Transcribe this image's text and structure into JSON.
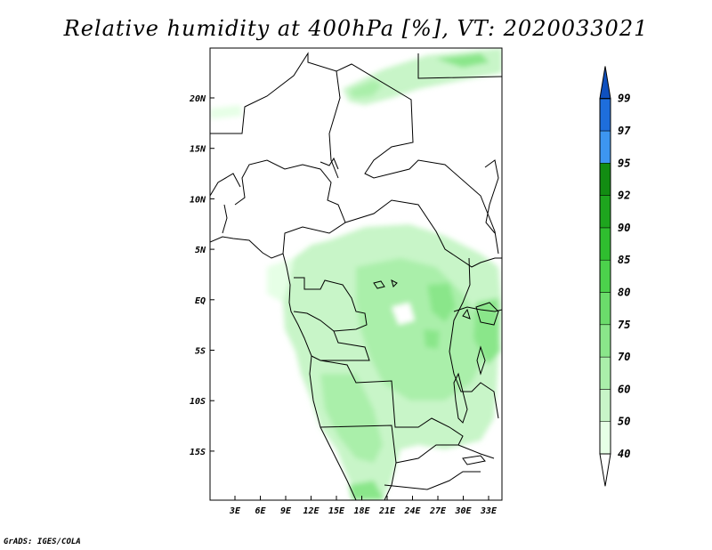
{
  "title": "Relative humidity at 400hPa [%], VT: 2020033021",
  "credit": "GrADS: IGES/COLA",
  "map": {
    "lat_labels": [
      "20N",
      "15N",
      "10N",
      "5N",
      "EQ",
      "5S",
      "10S",
      "15S"
    ],
    "lon_labels": [
      "3E",
      "6E",
      "9E",
      "12E",
      "15E",
      "18E",
      "21E",
      "24E",
      "27E",
      "30E",
      "33E"
    ]
  },
  "colorbar": {
    "labels": [
      "40",
      "50",
      "60",
      "70",
      "75",
      "80",
      "85",
      "90",
      "92",
      "95",
      "97",
      "99"
    ],
    "colors": [
      "#ffffff",
      "#e6ffe6",
      "#c8f5c8",
      "#aaefaa",
      "#8ae68a",
      "#6bdc6b",
      "#4cd24c",
      "#2fbe2f",
      "#1ea51e",
      "#128c12",
      "#3d96f0",
      "#1e6edc",
      "#0f50be"
    ]
  }
}
